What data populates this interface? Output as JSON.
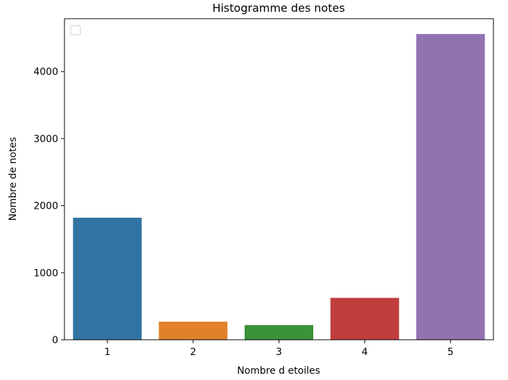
{
  "chart_data": {
    "type": "bar",
    "title": "Histogramme des notes",
    "xlabel": "Nombre d etoiles",
    "ylabel": "Nombre de notes",
    "categories": [
      "1",
      "2",
      "3",
      "4",
      "5"
    ],
    "values": [
      1820,
      270,
      220,
      625,
      4560
    ],
    "colors": [
      "#3274a1",
      "#e1812c",
      "#3a923a",
      "#c03d3e",
      "#9372b2"
    ],
    "yticks": [
      0,
      1000,
      2000,
      3000,
      4000
    ],
    "ytick_labels": [
      "0",
      "1000",
      "2000",
      "3000",
      "4000"
    ],
    "ylim": [
      0,
      4788
    ],
    "grid": false,
    "legend": {
      "placement": "top-left",
      "entries": []
    }
  }
}
